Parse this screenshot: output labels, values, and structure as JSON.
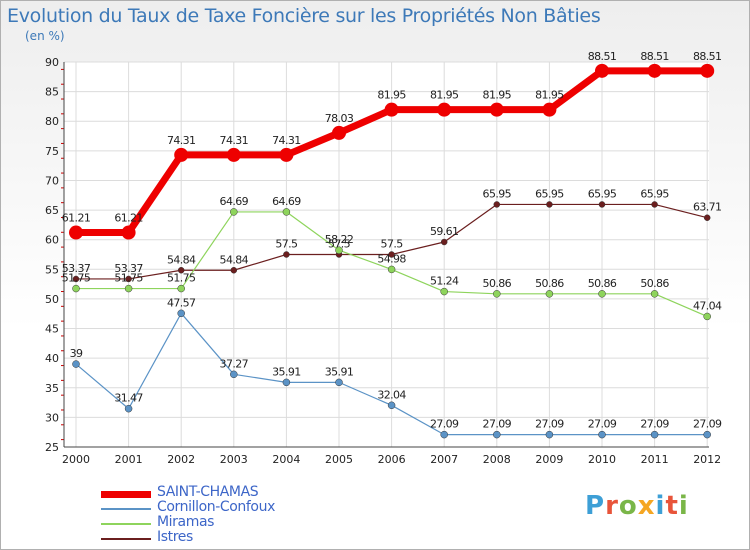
{
  "title": "Evolution du Taux de Taxe Foncière sur les Propriétés Non Bâties",
  "unit_label": "(en %)",
  "brand": {
    "letters": [
      "P",
      "r",
      "o",
      "x",
      "i",
      "t",
      "i"
    ],
    "colors": [
      "#3d9fd6",
      "#e8543a",
      "#7ab648",
      "#f5a623",
      "#3d9fd6",
      "#e8543a",
      "#7ab648"
    ]
  },
  "chart_data": {
    "type": "line",
    "categories": [
      "2000",
      "2001",
      "2002",
      "2003",
      "2004",
      "2005",
      "2006",
      "2007",
      "2008",
      "2009",
      "2010",
      "2011",
      "2012"
    ],
    "ylim": [
      25,
      90
    ],
    "yticks": [
      25,
      30,
      35,
      40,
      45,
      50,
      55,
      60,
      65,
      70,
      75,
      80,
      85,
      90
    ],
    "grid": true,
    "legend_position": "bottom-left",
    "series": [
      {
        "name": "Istres",
        "color": "#6b1f1f",
        "width": 1.2,
        "marker": 3,
        "values": [
          53.37,
          53.37,
          54.84,
          54.84,
          57.5,
          57.5,
          57.5,
          59.61,
          65.95,
          65.95,
          65.95,
          65.95,
          63.71
        ],
        "labels": [
          "53.37",
          "53.37",
          "54.84",
          "54.84",
          "57.5",
          "57.5",
          "57.5",
          "59.61",
          "65.95",
          "65.95",
          "65.95",
          "65.95",
          "63.71"
        ]
      },
      {
        "name": "Miramas",
        "color": "#8ed45c",
        "width": 1.2,
        "marker": 3.5,
        "values": [
          51.75,
          51.75,
          51.75,
          64.69,
          64.69,
          58.22,
          54.98,
          51.24,
          50.86,
          50.86,
          50.86,
          50.86,
          47.04
        ],
        "labels": [
          "51.75",
          "51.75",
          "51.75",
          "64.69",
          "64.69",
          "58.22",
          "54.98",
          "51.24",
          "50.86",
          "50.86",
          "50.86",
          "50.86",
          "47.04"
        ]
      },
      {
        "name": "Cornillon-Confoux",
        "color": "#5b93c6",
        "width": 1.2,
        "marker": 3.5,
        "values": [
          39,
          31.47,
          47.57,
          37.27,
          35.91,
          35.91,
          32.04,
          27.09,
          27.09,
          27.09,
          27.09,
          27.09,
          27.09
        ],
        "labels": [
          "39",
          "31.47",
          "47.57",
          "37.27",
          "35.91",
          "35.91",
          "32.04",
          "27.09",
          "27.09",
          "27.09",
          "27.09",
          "27.09",
          "27.09"
        ]
      },
      {
        "name": "SAINT-CHAMAS",
        "color": "#ee0000",
        "width": 7,
        "marker": 7,
        "values": [
          61.21,
          61.21,
          74.31,
          74.31,
          74.31,
          78.03,
          81.95,
          81.95,
          81.95,
          81.95,
          88.51,
          88.51,
          88.51
        ],
        "labels": [
          "61.21",
          "61.21",
          "74.31",
          "74.31",
          "74.31",
          "78.03",
          "81.95",
          "81.95",
          "81.95",
          "81.95",
          "88.51",
          "88.51",
          "88.51"
        ]
      }
    ],
    "legend_order": [
      "SAINT-CHAMAS",
      "Cornillon-Confoux",
      "Miramas",
      "Istres"
    ]
  }
}
